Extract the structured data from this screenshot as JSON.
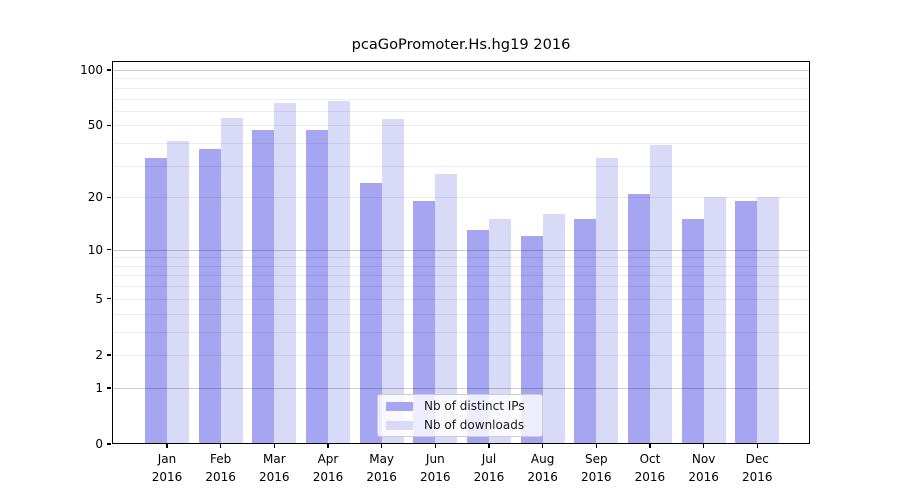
{
  "title": "pcaGoPromoter.Hs.hg19 2016",
  "chart_data": {
    "type": "bar",
    "title": "pcaGoPromoter.Hs.hg19 2016",
    "xlabel": "",
    "ylabel": "",
    "scale": "log1p (symlog-like: linear position of log10(1+v))",
    "categories": [
      "Jan",
      "Feb",
      "Mar",
      "Apr",
      "May",
      "Jun",
      "Jul",
      "Aug",
      "Sep",
      "Oct",
      "Nov",
      "Dec"
    ],
    "year_label": "2016",
    "series": [
      {
        "name": "Nb of distinct IPs",
        "color": "#a5a5f2",
        "values": [
          33,
          37,
          47,
          47,
          24,
          19,
          13,
          12,
          15,
          21,
          15,
          19
        ]
      },
      {
        "name": "Nb of downloads",
        "color": "#d9d9f8",
        "values": [
          41,
          55,
          66,
          68,
          54,
          27,
          15,
          16,
          33,
          39,
          20,
          20
        ]
      }
    ],
    "yticks": [
      0,
      1,
      2,
      5,
      10,
      20,
      50,
      100
    ],
    "ylim": [
      0,
      112
    ],
    "grid": {
      "major_at": [
        1,
        10,
        100
      ],
      "minor_at": [
        2,
        3,
        4,
        5,
        6,
        7,
        8,
        9,
        20,
        30,
        40,
        50,
        60,
        70,
        80,
        90
      ],
      "orientation": "horizontal"
    },
    "legend_position": "lower center",
    "frame_color": "#000000",
    "background_color": "#ffffff"
  }
}
